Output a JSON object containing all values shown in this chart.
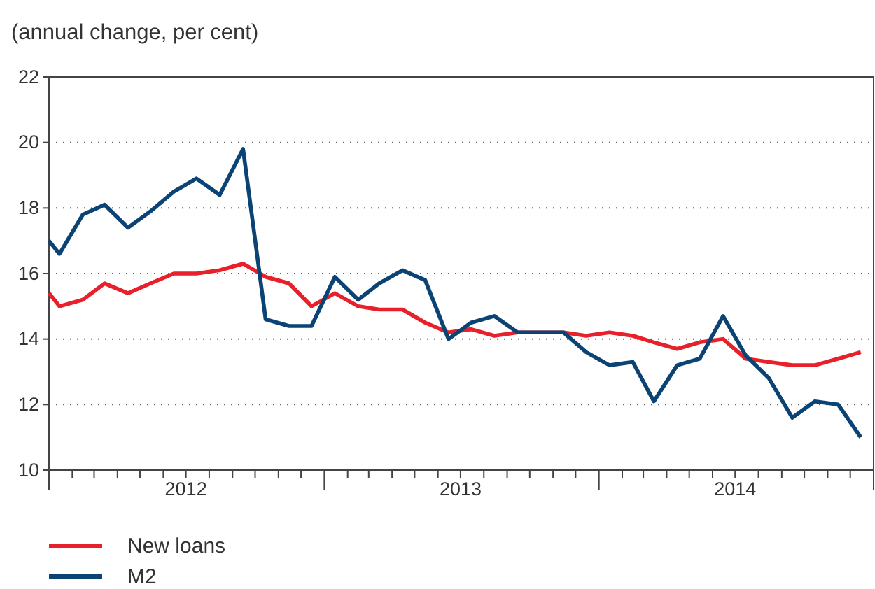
{
  "chart_data": {
    "type": "line",
    "subtitle": "(annual change, per cent)",
    "x": [
      "2012-01-01",
      "2012-01-15",
      "2012-02-15",
      "2012-03-15",
      "2012-04-15",
      "2012-05-15",
      "2012-06-15",
      "2012-07-15",
      "2012-08-15",
      "2012-09-15",
      "2012-10-15",
      "2012-11-15",
      "2012-12-15",
      "2013-01-15",
      "2013-02-15",
      "2013-03-15",
      "2013-04-15",
      "2013-05-15",
      "2013-06-15",
      "2013-07-15",
      "2013-08-15",
      "2013-09-15",
      "2013-10-15",
      "2013-11-15",
      "2013-12-15",
      "2014-01-15",
      "2014-02-15",
      "2014-03-15",
      "2014-04-15",
      "2014-05-15",
      "2014-06-15",
      "2014-07-15",
      "2014-08-15",
      "2014-09-15",
      "2014-10-15",
      "2014-11-15",
      "2014-12-15"
    ],
    "series": [
      {
        "name": "New loans",
        "color": "#e8202a",
        "values": [
          15.4,
          15.0,
          15.2,
          15.7,
          15.4,
          15.7,
          16.0,
          16.0,
          16.1,
          16.3,
          15.9,
          15.7,
          15.0,
          15.4,
          15.0,
          14.9,
          14.9,
          14.5,
          14.2,
          14.3,
          14.1,
          14.2,
          14.2,
          14.2,
          14.1,
          14.2,
          14.1,
          13.9,
          13.7,
          13.9,
          14.0,
          13.4,
          13.3,
          13.2,
          13.2,
          13.4,
          13.6
        ]
      },
      {
        "name": "M2",
        "color": "#0b4474",
        "values": [
          17.0,
          16.6,
          17.8,
          18.1,
          17.4,
          17.9,
          18.5,
          18.9,
          18.4,
          19.8,
          14.6,
          14.4,
          14.4,
          15.9,
          15.2,
          15.7,
          16.1,
          15.8,
          14.0,
          14.5,
          14.7,
          14.2,
          14.2,
          14.2,
          13.6,
          13.2,
          13.3,
          12.1,
          13.2,
          13.4,
          14.7,
          13.5,
          12.8,
          11.6,
          12.1,
          12.0,
          11.0
        ]
      }
    ],
    "xlim": [
      "2012-01-01",
      "2015-01-01"
    ],
    "xticks": [
      {
        "value": "2012-01-01",
        "label": null
      },
      {
        "value": "2012-02-01",
        "label": null
      },
      {
        "value": "2012-03-01",
        "label": null
      },
      {
        "value": "2012-04-01",
        "label": null
      },
      {
        "value": "2012-05-01",
        "label": null
      },
      {
        "value": "2012-06-01",
        "label": null
      },
      {
        "value": "2012-07-01",
        "label": "2012"
      },
      {
        "value": "2012-08-01",
        "label": null
      },
      {
        "value": "2012-09-01",
        "label": null
      },
      {
        "value": "2012-10-01",
        "label": null
      },
      {
        "value": "2012-11-01",
        "label": null
      },
      {
        "value": "2012-12-01",
        "label": null
      },
      {
        "value": "2013-01-01",
        "label": null
      },
      {
        "value": "2013-02-01",
        "label": null
      },
      {
        "value": "2013-03-01",
        "label": null
      },
      {
        "value": "2013-04-01",
        "label": null
      },
      {
        "value": "2013-05-01",
        "label": null
      },
      {
        "value": "2013-06-01",
        "label": null
      },
      {
        "value": "2013-07-01",
        "label": "2013"
      },
      {
        "value": "2013-08-01",
        "label": null
      },
      {
        "value": "2013-09-01",
        "label": null
      },
      {
        "value": "2013-10-01",
        "label": null
      },
      {
        "value": "2013-11-01",
        "label": null
      },
      {
        "value": "2013-12-01",
        "label": null
      },
      {
        "value": "2014-01-01",
        "label": null
      },
      {
        "value": "2014-02-01",
        "label": null
      },
      {
        "value": "2014-03-01",
        "label": null
      },
      {
        "value": "2014-04-01",
        "label": null
      },
      {
        "value": "2014-05-01",
        "label": null
      },
      {
        "value": "2014-06-01",
        "label": null
      },
      {
        "value": "2014-07-01",
        "label": "2014"
      },
      {
        "value": "2014-08-01",
        "label": null
      },
      {
        "value": "2014-09-01",
        "label": null
      },
      {
        "value": "2014-10-01",
        "label": null
      },
      {
        "value": "2014-11-01",
        "label": null
      },
      {
        "value": "2014-12-01",
        "label": null
      },
      {
        "value": "2015-01-01",
        "label": null
      }
    ],
    "ylim": [
      10,
      22
    ],
    "yticks": [
      10,
      12,
      14,
      16,
      18,
      20,
      22
    ],
    "grid": "y",
    "legend": "bottom",
    "marker": "none",
    "line_style": "solid"
  }
}
